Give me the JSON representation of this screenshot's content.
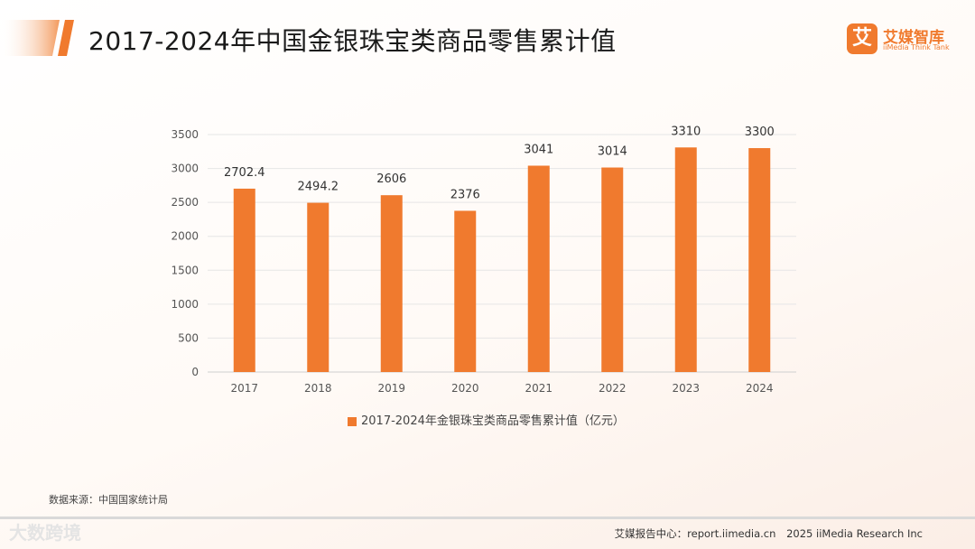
{
  "header": {
    "title": "2017-2024年中国金银珠宝类商品零售累计值"
  },
  "logo": {
    "badge": "艾",
    "name_cn": "艾媒智库",
    "name_en": "iiMedia Think Tank"
  },
  "colors": {
    "accent": "#f07a2e",
    "grid": "#e6e6e6",
    "title_deco": "#f39a5e"
  },
  "chart_data": {
    "type": "bar",
    "title": "2017-2024年中国金银珠宝类商品零售累计值",
    "categories": [
      "2017",
      "2018",
      "2019",
      "2020",
      "2021",
      "2022",
      "2023",
      "2024"
    ],
    "series": [
      {
        "name": "2017-2024年金银珠宝类商品零售累计值（亿元）",
        "values": [
          2702.4,
          2494.2,
          2606,
          2376,
          3041,
          3014,
          3310,
          3300
        ],
        "labels": [
          "2702.4",
          "2494.2",
          "2606",
          "2376",
          "3041",
          "3014",
          "3310",
          "3300"
        ]
      }
    ],
    "yticks": [
      0,
      500,
      1000,
      1500,
      2000,
      2500,
      3000,
      3500
    ],
    "ylim": [
      0,
      3500
    ],
    "xlabel": "",
    "ylabel": "",
    "grid": true,
    "legend_position": "bottom"
  },
  "legend": {
    "label": "2017-2024年金银珠宝类商品零售累计值（亿元）"
  },
  "source": {
    "text": "数据来源：中国国家统计局"
  },
  "footer": {
    "report_center": "艾媒报告中心：report.iimedia.cn",
    "copyright": "2025 iiMedia Research Inc"
  },
  "watermark": {
    "text": "大数跨境"
  }
}
